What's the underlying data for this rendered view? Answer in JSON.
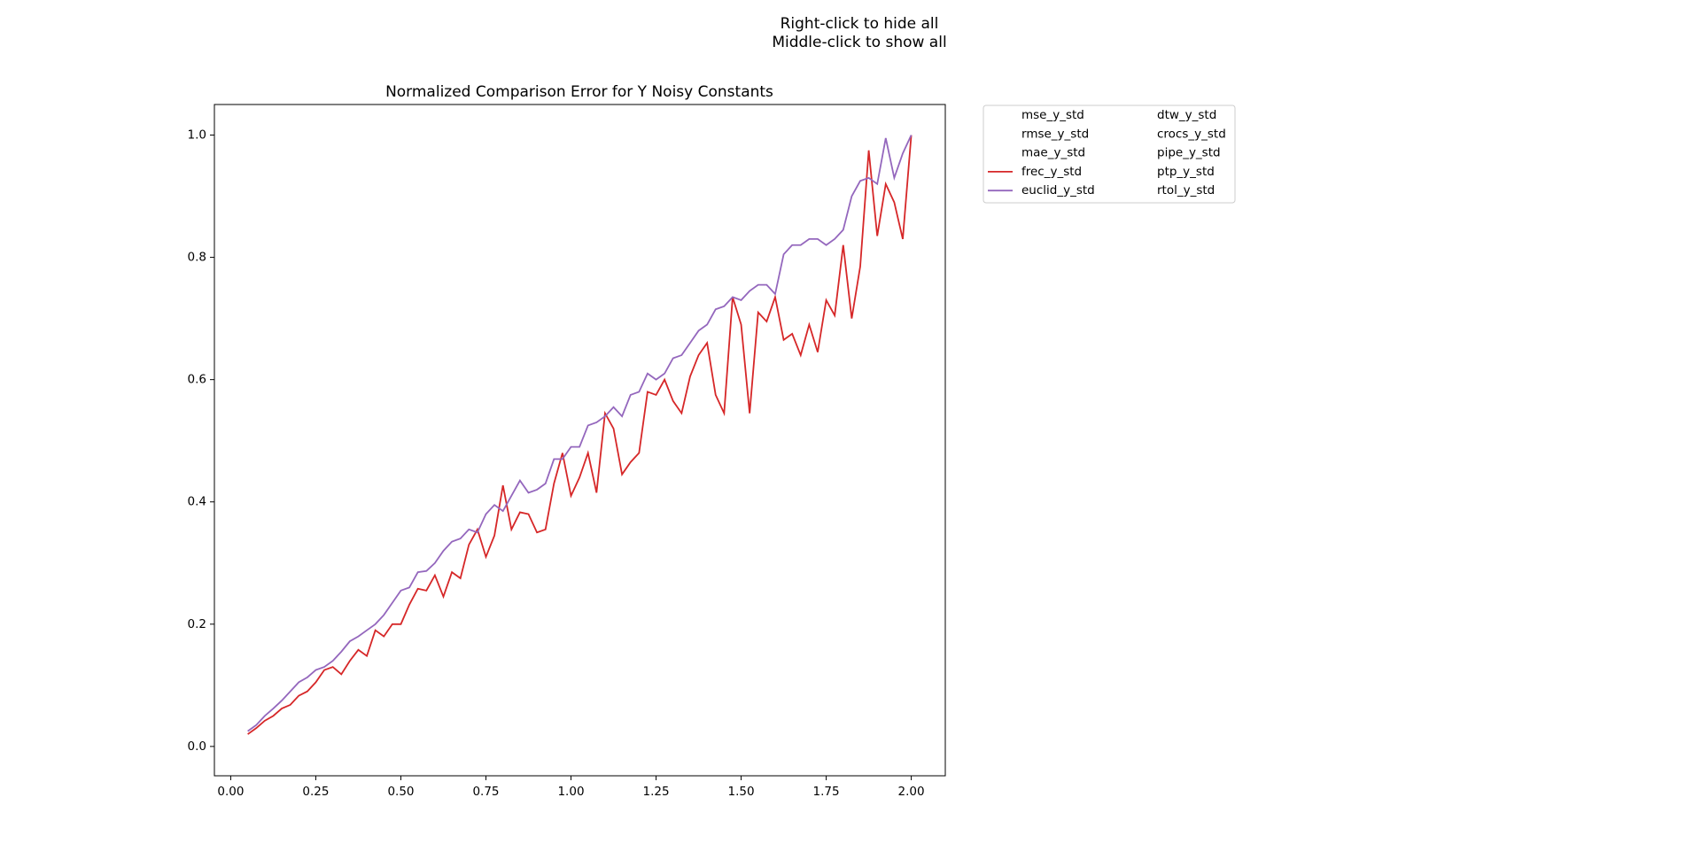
{
  "chart_data": {
    "type": "line",
    "header": [
      "Right-click to hide all",
      "Middle-click to show all"
    ],
    "title": "Normalized Comparison Error for Y Noisy Constants",
    "x": [
      0.05,
      0.075,
      0.1,
      0.125,
      0.15,
      0.175,
      0.2,
      0.225,
      0.25,
      0.275,
      0.3,
      0.325,
      0.35,
      0.375,
      0.4,
      0.425,
      0.45,
      0.475,
      0.5,
      0.525,
      0.55,
      0.575,
      0.6,
      0.625,
      0.65,
      0.675,
      0.7,
      0.725,
      0.75,
      0.775,
      0.8,
      0.825,
      0.85,
      0.875,
      0.9,
      0.925,
      0.95,
      0.975,
      1.0,
      1.025,
      1.05,
      1.075,
      1.1,
      1.125,
      1.15,
      1.175,
      1.2,
      1.225,
      1.25,
      1.275,
      1.3,
      1.325,
      1.35,
      1.375,
      1.4,
      1.425,
      1.45,
      1.475,
      1.5,
      1.525,
      1.55,
      1.575,
      1.6,
      1.625,
      1.65,
      1.675,
      1.7,
      1.725,
      1.75,
      1.775,
      1.8,
      1.825,
      1.85,
      1.875,
      1.9,
      1.925,
      1.95,
      1.975,
      2.0
    ],
    "series": [
      {
        "name": "mse_y_std",
        "visible": false
      },
      {
        "name": "rmse_y_std",
        "visible": false
      },
      {
        "name": "mae_y_std",
        "visible": false
      },
      {
        "name": "frec_y_std",
        "visible": true,
        "color": "#d62728",
        "values": [
          0.02,
          0.03,
          0.042,
          0.05,
          0.062,
          0.068,
          0.083,
          0.09,
          0.105,
          0.125,
          0.13,
          0.118,
          0.14,
          0.158,
          0.148,
          0.19,
          0.18,
          0.2,
          0.2,
          0.232,
          0.258,
          0.255,
          0.28,
          0.245,
          0.285,
          0.275,
          0.33,
          0.355,
          0.31,
          0.345,
          0.427,
          0.355,
          0.383,
          0.38,
          0.35,
          0.355,
          0.43,
          0.48,
          0.41,
          0.44,
          0.48,
          0.415,
          0.545,
          0.52,
          0.445,
          0.465,
          0.48,
          0.58,
          0.575,
          0.6,
          0.565,
          0.545,
          0.605,
          0.64,
          0.66,
          0.575,
          0.545,
          0.735,
          0.69,
          0.545,
          0.71,
          0.695,
          0.735,
          0.665,
          0.675,
          0.64,
          0.69,
          0.645,
          0.73,
          0.705,
          0.82,
          0.7,
          0.785,
          0.975,
          0.835,
          0.92,
          0.89,
          0.83,
          1.0
        ]
      },
      {
        "name": "euclid_y_std",
        "visible": true,
        "color": "#9467bd",
        "values": [
          0.025,
          0.035,
          0.05,
          0.062,
          0.075,
          0.09,
          0.105,
          0.113,
          0.125,
          0.13,
          0.14,
          0.155,
          0.172,
          0.18,
          0.19,
          0.2,
          0.215,
          0.235,
          0.255,
          0.26,
          0.285,
          0.287,
          0.3,
          0.32,
          0.335,
          0.34,
          0.355,
          0.35,
          0.38,
          0.395,
          0.385,
          0.41,
          0.435,
          0.415,
          0.42,
          0.43,
          0.47,
          0.47,
          0.49,
          0.49,
          0.525,
          0.53,
          0.54,
          0.555,
          0.54,
          0.575,
          0.58,
          0.61,
          0.6,
          0.61,
          0.635,
          0.64,
          0.66,
          0.68,
          0.69,
          0.715,
          0.72,
          0.735,
          0.73,
          0.745,
          0.755,
          0.755,
          0.74,
          0.805,
          0.82,
          0.82,
          0.83,
          0.83,
          0.82,
          0.83,
          0.845,
          0.9,
          0.925,
          0.93,
          0.92,
          0.995,
          0.93,
          0.97,
          1.0
        ]
      },
      {
        "name": "dtw_y_std",
        "visible": false
      },
      {
        "name": "crocs_y_std",
        "visible": false
      },
      {
        "name": "pipe_y_std",
        "visible": false
      },
      {
        "name": "ptp_y_std",
        "visible": false
      },
      {
        "name": "rtol_y_std",
        "visible": false
      }
    ],
    "xlim": [
      -0.048,
      2.1
    ],
    "ylim": [
      -0.048,
      1.05
    ],
    "xticks": [
      {
        "value": 0,
        "label": "0.00"
      },
      {
        "value": 0.25,
        "label": "0.25"
      },
      {
        "value": 0.5,
        "label": "0.50"
      },
      {
        "value": 0.75,
        "label": "0.75"
      },
      {
        "value": 1,
        "label": "1.00"
      },
      {
        "value": 1.25,
        "label": "1.25"
      },
      {
        "value": 1.5,
        "label": "1.50"
      },
      {
        "value": 1.75,
        "label": "1.75"
      },
      {
        "value": 2,
        "label": "2.00"
      }
    ],
    "yticks": [
      {
        "value": 0,
        "label": "0.0"
      },
      {
        "value": 0.2,
        "label": "0.2"
      },
      {
        "value": 0.4,
        "label": "0.4"
      },
      {
        "value": 0.6,
        "label": "0.6"
      },
      {
        "value": 0.8,
        "label": "0.8"
      },
      {
        "value": 1,
        "label": "1.0"
      }
    ],
    "grid": false,
    "legend": "outside-upper-right"
  }
}
